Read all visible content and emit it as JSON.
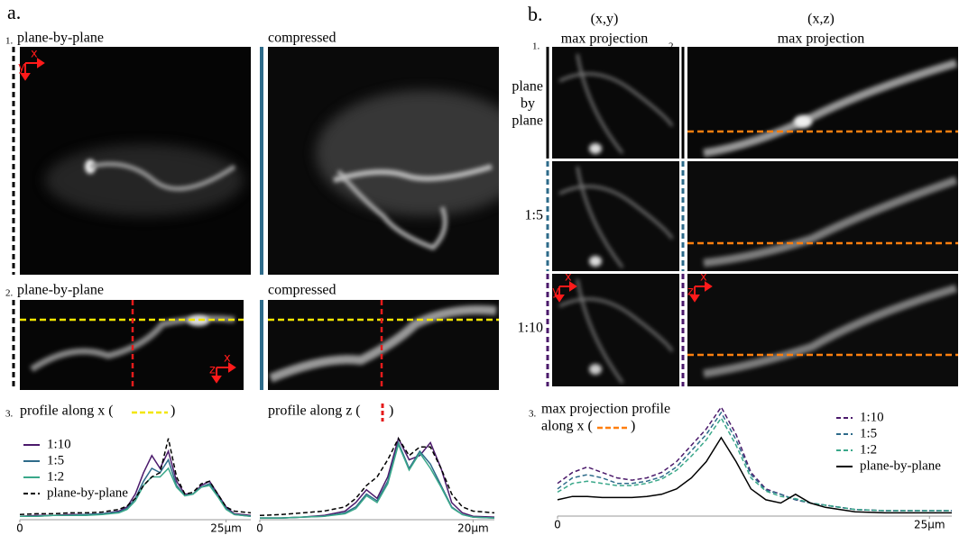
{
  "panel_a": {
    "label": "a.",
    "row1": {
      "number": "1.",
      "left_title": "plane-by-plane",
      "right_title": "compressed",
      "axis_x": "x",
      "axis_y": "y"
    },
    "row2": {
      "number": "2.",
      "left_title": "plane-by-plane",
      "right_title": "compressed",
      "axis_x": "x",
      "axis_z": "z"
    },
    "row3": {
      "number": "3.",
      "left_title_open": "profile along x (",
      "left_title_close": ")",
      "right_title_open": "profile along z (",
      "right_title_close": ")"
    }
  },
  "panel_b": {
    "label": "b.",
    "col1_header": "(x,y)",
    "col1_subheader": "max projection",
    "col1_number": "1.",
    "col2_header": "(x,z)",
    "col2_subheader": "max projection",
    "col2_number": "2.",
    "rows": [
      [
        "plane",
        "by",
        "plane"
      ],
      [
        "1:5"
      ],
      [
        "1:10"
      ]
    ],
    "xy_axis_x": "x",
    "xy_axis_y": "y",
    "xz_axis_x": "x",
    "xz_axis_z": "z",
    "profile_number": "3.",
    "profile_title_line1": "max projection profile",
    "profile_title_open": "along x (",
    "profile_title_close": ")"
  },
  "chart_data": [
    {
      "type": "line",
      "legend": "upper left",
      "xlim": [
        0,
        28
      ],
      "ylim": [
        0,
        1
      ],
      "xticks": [
        {
          "value": 0,
          "label": "0"
        },
        {
          "value": 25,
          "label": "25µm"
        }
      ],
      "x": [
        0,
        2,
        4,
        6,
        8,
        10,
        12,
        13,
        14,
        15,
        16,
        17,
        18,
        19,
        20,
        21,
        22,
        23,
        24,
        25,
        26,
        28
      ],
      "series": [
        {
          "name": "1:10",
          "color": "#4b1a6b",
          "dashed": false,
          "values": [
            0.04,
            0.05,
            0.05,
            0.06,
            0.06,
            0.07,
            0.1,
            0.15,
            0.3,
            0.55,
            0.75,
            0.6,
            0.8,
            0.45,
            0.3,
            0.3,
            0.4,
            0.45,
            0.3,
            0.15,
            0.07,
            0.05
          ]
        },
        {
          "name": "1:5",
          "color": "#2e6b8a",
          "dashed": false,
          "values": [
            0.04,
            0.04,
            0.05,
            0.05,
            0.06,
            0.07,
            0.09,
            0.13,
            0.25,
            0.45,
            0.6,
            0.55,
            0.7,
            0.4,
            0.28,
            0.3,
            0.38,
            0.42,
            0.28,
            0.13,
            0.06,
            0.04
          ]
        },
        {
          "name": "1:2",
          "color": "#3aa88a",
          "dashed": false,
          "values": [
            0.04,
            0.04,
            0.05,
            0.05,
            0.05,
            0.06,
            0.08,
            0.12,
            0.22,
            0.4,
            0.5,
            0.5,
            0.6,
            0.38,
            0.28,
            0.3,
            0.38,
            0.4,
            0.27,
            0.12,
            0.06,
            0.04
          ]
        },
        {
          "name": "plane-by-plane",
          "color": "#000000",
          "dashed": true,
          "values": [
            0.06,
            0.07,
            0.07,
            0.08,
            0.08,
            0.09,
            0.12,
            0.16,
            0.25,
            0.4,
            0.5,
            0.55,
            0.95,
            0.5,
            0.3,
            0.32,
            0.42,
            0.45,
            0.3,
            0.15,
            0.1,
            0.08
          ]
        }
      ]
    },
    {
      "type": "line",
      "xlim": [
        0,
        22
      ],
      "ylim": [
        0,
        1
      ],
      "xticks": [
        {
          "value": 0,
          "label": "0"
        },
        {
          "value": 20,
          "label": "20µm"
        }
      ],
      "x": [
        0,
        2,
        4,
        6,
        8,
        9,
        10,
        11,
        12,
        13,
        14,
        15,
        16,
        17,
        18,
        19,
        20,
        22
      ],
      "series": [
        {
          "color": "#4b1a6b",
          "dashed": false,
          "values": [
            0.02,
            0.02,
            0.03,
            0.05,
            0.1,
            0.2,
            0.35,
            0.25,
            0.5,
            0.95,
            0.7,
            0.75,
            0.9,
            0.6,
            0.2,
            0.08,
            0.04,
            0.03
          ]
        },
        {
          "color": "#2e6b8a",
          "dashed": false,
          "values": [
            0.02,
            0.02,
            0.03,
            0.04,
            0.08,
            0.15,
            0.3,
            0.22,
            0.45,
            0.9,
            0.6,
            0.8,
            0.65,
            0.4,
            0.15,
            0.06,
            0.03,
            0.02
          ]
        },
        {
          "color": "#3aa88a",
          "dashed": false,
          "values": [
            0.02,
            0.02,
            0.03,
            0.04,
            0.07,
            0.13,
            0.28,
            0.2,
            0.42,
            0.88,
            0.58,
            0.78,
            0.6,
            0.38,
            0.14,
            0.06,
            0.03,
            0.02
          ]
        },
        {
          "color": "#000000",
          "dashed": true,
          "values": [
            0.05,
            0.06,
            0.08,
            0.1,
            0.15,
            0.25,
            0.4,
            0.5,
            0.7,
            0.95,
            0.75,
            0.85,
            0.85,
            0.6,
            0.3,
            0.15,
            0.1,
            0.08
          ]
        }
      ]
    },
    {
      "type": "line",
      "legend": "upper right",
      "xlim": [
        0,
        26.5
      ],
      "ylim": [
        0,
        1
      ],
      "xticks": [
        {
          "value": 0,
          "label": "0"
        },
        {
          "value": 25,
          "label": "25µm"
        }
      ],
      "x": [
        0,
        1,
        2,
        3,
        4,
        5,
        6,
        7,
        8,
        9,
        10,
        11,
        12,
        13,
        14,
        15,
        16,
        17,
        18,
        19,
        20,
        22,
        24,
        26.5
      ],
      "series": [
        {
          "name": "1:10",
          "color": "#4b1a6b",
          "dashed": true,
          "values": [
            0.3,
            0.4,
            0.45,
            0.4,
            0.35,
            0.33,
            0.35,
            0.4,
            0.5,
            0.65,
            0.8,
            1.0,
            0.75,
            0.4,
            0.25,
            0.2,
            0.15,
            0.12,
            0.1,
            0.08,
            0.06,
            0.05,
            0.05,
            0.05
          ]
        },
        {
          "name": "1:5",
          "color": "#2e6b8a",
          "dashed": true,
          "values": [
            0.25,
            0.35,
            0.38,
            0.35,
            0.3,
            0.3,
            0.32,
            0.36,
            0.45,
            0.6,
            0.75,
            0.95,
            0.7,
            0.38,
            0.24,
            0.2,
            0.15,
            0.12,
            0.1,
            0.08,
            0.06,
            0.05,
            0.05,
            0.05
          ]
        },
        {
          "name": "1:2",
          "color": "#3aa88a",
          "dashed": true,
          "values": [
            0.22,
            0.3,
            0.32,
            0.3,
            0.28,
            0.28,
            0.3,
            0.34,
            0.42,
            0.55,
            0.7,
            0.9,
            0.65,
            0.35,
            0.23,
            0.18,
            0.16,
            0.12,
            0.1,
            0.08,
            0.06,
            0.05,
            0.05,
            0.05
          ]
        },
        {
          "name": "plane-by-plane",
          "color": "#000000",
          "dashed": false,
          "values": [
            0.15,
            0.18,
            0.18,
            0.17,
            0.17,
            0.17,
            0.18,
            0.2,
            0.25,
            0.35,
            0.5,
            0.72,
            0.5,
            0.25,
            0.15,
            0.12,
            0.2,
            0.12,
            0.08,
            0.06,
            0.04,
            0.03,
            0.03,
            0.03
          ]
        }
      ]
    }
  ]
}
